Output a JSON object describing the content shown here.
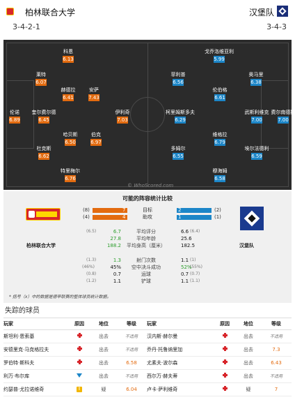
{
  "header": {
    "home_team": "柏林联合大学",
    "away_team": "汉堡队",
    "home_formation": "3-4-2-1",
    "away_formation": "3-4-3"
  },
  "pitch": {
    "watermark": "© WhoScored.com",
    "home_players": [
      {
        "name": "科恩",
        "rating": "6.13"
      },
      {
        "name": "莱特",
        "rating": "6.07"
      },
      {
        "name": "赫德拉",
        "rating": "6.41"
      },
      {
        "name": "安萨",
        "rating": "7.43"
      },
      {
        "name": "伦诺",
        "rating": "6.89"
      },
      {
        "name": "奎尔费尔德",
        "rating": "6.45"
      },
      {
        "name": "伊利奇",
        "rating": "7.03"
      },
      {
        "name": "哈贝斯",
        "rating": "6.50"
      },
      {
        "name": "伯克",
        "rating": "6.97"
      },
      {
        "name": "杜克斯",
        "rating": "6.62"
      },
      {
        "name": "特里梅尔",
        "rating": "6.76"
      }
    ],
    "away_players": [
      {
        "name": "戈乔洛维亚利",
        "rating": "5.99"
      },
      {
        "name": "菲利普",
        "rating": "6.56"
      },
      {
        "name": "奥马里",
        "rating": "6.38"
      },
      {
        "name": "伦伯格",
        "rating": "6.61"
      },
      {
        "name": "柯里姆斯多夫",
        "rating": "6.29"
      },
      {
        "name": "武斯利维克",
        "rating": "7.00"
      },
      {
        "name": "费尔南德斯",
        "rating": "7.00"
      },
      {
        "name": "维格拉",
        "rating": "6.79"
      },
      {
        "name": "多姆尔",
        "rating": "6.55"
      },
      {
        "name": "埃尔法德利",
        "rating": "6.59"
      },
      {
        "name": "穆海姆",
        "rating": "6.58"
      }
    ]
  },
  "stats": {
    "title": "可能的阵容统计比较",
    "home_team": "柏林联合大学",
    "away_team": "汉堡队",
    "goals": {
      "label": "目标",
      "home_count": "(8)",
      "home": "7",
      "away": "2",
      "away_count": "(2)"
    },
    "assists": {
      "label": "助攻",
      "home_count": "(4)",
      "home": "4",
      "away": "1",
      "away_count": "(1)"
    },
    "rows": [
      {
        "label": "平均评分",
        "home": "6.7",
        "home_note": "(6.5)",
        "away": "6.6",
        "away_note": "(6.4)"
      },
      {
        "label": "平均年龄",
        "home": "27.8",
        "home_note": "",
        "away": "25.6",
        "away_note": ""
      },
      {
        "label": "平均身高（厘米）",
        "home": "188.2",
        "home_note": "",
        "away": "182.5",
        "away_note": ""
      },
      {
        "label": "射门次数",
        "home": "1.3",
        "home_note": "(1.3)",
        "away": "1.1",
        "away_note": "(1)"
      },
      {
        "label": "空中决斗成功",
        "home": "45%",
        "home_note": "(46%)",
        "away": "52%",
        "away_note": "(55%)"
      },
      {
        "label": "运球",
        "home": "0.7",
        "home_note": "(0.8)",
        "away": "0.7",
        "away_note": "(0.7)"
      },
      {
        "label": "铲球",
        "home": "1.1",
        "home_note": "(1.2)",
        "away": "1.1",
        "away_note": "(1.1)"
      }
    ],
    "note": "* 括号（x）中的数据是德甲联赛的整体球员统计数据。"
  },
  "missing": {
    "title": "失踪的球员",
    "headers": {
      "player": "玩家",
      "reason": "原因",
      "status": "地位",
      "level": "等级"
    },
    "rows": [
      {
        "hp": "斯坦利·恩索基",
        "hr": "cross",
        "hs": "出去",
        "hl": "不适用",
        "ap": "汉内斯·赫尔曼",
        "ar": "cross",
        "as": "出去",
        "al": "不适用"
      },
      {
        "hp": "安德里克·马克格拉夫",
        "hr": "cross",
        "hs": "出去",
        "hl": "不适用",
        "ap": "乔丹·托鲁纳里加",
        "ar": "cross",
        "as": "出去",
        "al": "7.3"
      },
      {
        "hp": "罗伯特·斯科夫",
        "hr": "cross",
        "hs": "出去",
        "hl": "6.58",
        "ap": "尤素夫·波尔森",
        "ar": "cross",
        "as": "出去",
        "al": "6.43"
      },
      {
        "hp": "利万·布尔库",
        "hr": "down",
        "hs": "出去",
        "hl": "不适用",
        "ap": "西尔万·赫夫蒂",
        "ar": "cross",
        "as": "出去",
        "al": "不适用"
      },
      {
        "hp": "约瑟普·尤拉诺维奇",
        "hr": "warn",
        "hs": "疑",
        "hl": "6.04",
        "ap": "卢卡·萨利维奇",
        "ar": "cross",
        "as": "疑",
        "al": "7"
      }
    ]
  },
  "colors": {
    "home": "#e36b0f",
    "away": "#1c86c8",
    "pitch": "#2b2b2b"
  }
}
